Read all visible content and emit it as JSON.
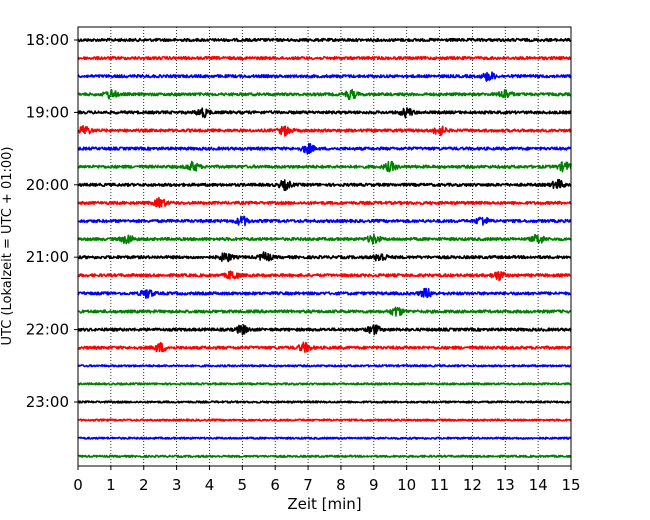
{
  "chart_data": {
    "type": "line",
    "title": "",
    "xlabel": "Zeit  [min]",
    "ylabel": "UTC (Lokalzeit = UTC + 01:00)",
    "xlim": [
      0,
      15
    ],
    "x_ticks": [
      0,
      1,
      2,
      3,
      4,
      5,
      6,
      7,
      8,
      9,
      10,
      11,
      12,
      13,
      14,
      15
    ],
    "y_tick_labels": [
      "18:00",
      "19:00",
      "20:00",
      "21:00",
      "22:00",
      "23:00"
    ],
    "grid": "vertical dotted lines at each minute",
    "trace_interval_min": 15,
    "trace_start_utc": "18:00",
    "trace_colors": [
      "#000000",
      "#ff0000",
      "#0000ff",
      "#008000"
    ],
    "series": [
      {
        "start": "18:00",
        "color": "#000000",
        "bursts": []
      },
      {
        "start": "18:15",
        "color": "#ff0000",
        "bursts": []
      },
      {
        "start": "18:30",
        "color": "#0000ff",
        "bursts": [
          12.5
        ]
      },
      {
        "start": "18:45",
        "color": "#008000",
        "bursts": [
          1.0,
          8.3,
          13.0
        ]
      },
      {
        "start": "19:00",
        "color": "#000000",
        "bursts": [
          3.8,
          10.0
        ]
      },
      {
        "start": "19:15",
        "color": "#ff0000",
        "bursts": [
          0.2,
          6.3,
          11.0
        ]
      },
      {
        "start": "19:30",
        "color": "#0000ff",
        "bursts": [
          7.0
        ]
      },
      {
        "start": "19:45",
        "color": "#008000",
        "bursts": [
          3.5,
          9.5,
          14.8
        ]
      },
      {
        "start": "20:00",
        "color": "#000000",
        "bursts": [
          6.3,
          14.6
        ]
      },
      {
        "start": "20:15",
        "color": "#ff0000",
        "bursts": [
          2.5
        ]
      },
      {
        "start": "20:30",
        "color": "#0000ff",
        "bursts": [
          5.0,
          12.3
        ]
      },
      {
        "start": "20:45",
        "color": "#008000",
        "bursts": [
          1.5,
          9.0,
          14.0
        ]
      },
      {
        "start": "21:00",
        "color": "#000000",
        "bursts": [
          4.5,
          5.7,
          9.2
        ]
      },
      {
        "start": "21:15",
        "color": "#ff0000",
        "bursts": [
          4.7,
          12.8
        ]
      },
      {
        "start": "21:30",
        "color": "#0000ff",
        "bursts": [
          2.1,
          10.6
        ]
      },
      {
        "start": "21:45",
        "color": "#008000",
        "bursts": [
          9.7
        ]
      },
      {
        "start": "22:00",
        "color": "#000000",
        "bursts": [
          5.0,
          9.0
        ]
      },
      {
        "start": "22:15",
        "color": "#ff0000",
        "bursts": [
          2.5,
          6.9
        ]
      },
      {
        "start": "22:30",
        "color": "#0000ff",
        "bursts": []
      },
      {
        "start": "22:45",
        "color": "#008000",
        "bursts": []
      },
      {
        "start": "23:00",
        "color": "#000000",
        "bursts": []
      },
      {
        "start": "23:15",
        "color": "#ff0000",
        "bursts": []
      },
      {
        "start": "23:30",
        "color": "#0000ff",
        "bursts": []
      },
      {
        "start": "23:45",
        "color": "#008000",
        "bursts": []
      }
    ]
  }
}
